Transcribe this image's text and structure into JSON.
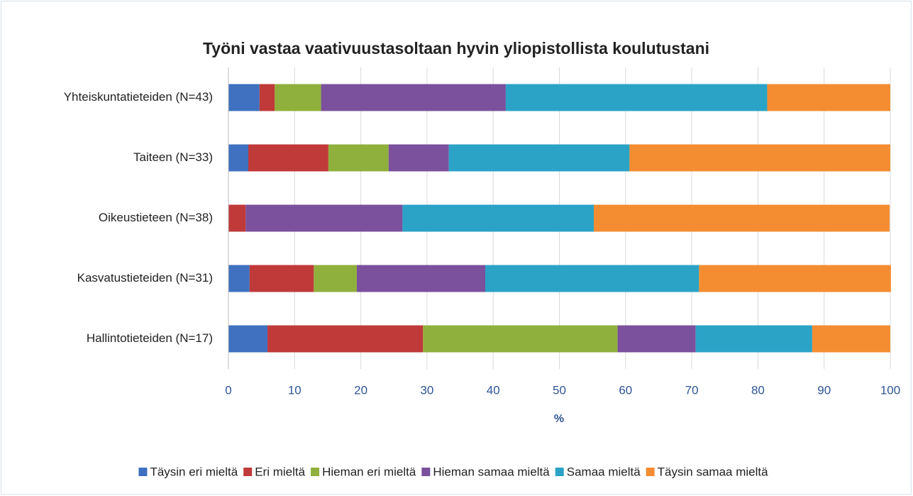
{
  "chart_data": {
    "type": "stacked_barh",
    "title": "Työni vastaa vaativuustasoltaan hyvin yliopistollista koulutustani",
    "xlabel": "%",
    "categories": [
      "Yhteiskuntatieteiden (N=43)",
      "Taiteen (N=33)",
      "Oikeustieteen (N=38)",
      "Kasvatustieteiden (N=31)",
      "Hallintotieteiden (N=17)"
    ],
    "series": [
      {
        "name": "Täysin eri mieltä",
        "color": "#3f71c0",
        "values": [
          4.7,
          3.0,
          0,
          3.2,
          5.9
        ]
      },
      {
        "name": "Eri mieltä",
        "color": "#c03a3a",
        "values": [
          2.3,
          12.1,
          2.6,
          9.7,
          23.5
        ]
      },
      {
        "name": "Hieman eri mieltä",
        "color": "#8fb03c",
        "values": [
          7.0,
          9.1,
          0,
          6.5,
          29.4
        ]
      },
      {
        "name": "Hieman samaa mieltä",
        "color": "#7b509c",
        "values": [
          27.9,
          9.1,
          23.7,
          19.4,
          11.8
        ]
      },
      {
        "name": "Samaa mieltä",
        "color": "#2aa3c7",
        "values": [
          39.5,
          27.3,
          28.9,
          32.3,
          17.6
        ]
      },
      {
        "name": "Täysin samaa mieltä",
        "color": "#f48d32",
        "values": [
          18.6,
          39.4,
          44.7,
          29.0,
          11.8
        ]
      }
    ],
    "xlim": [
      0,
      100
    ],
    "xticks": [
      0,
      10,
      20,
      30,
      40,
      50,
      60,
      70,
      80,
      90,
      100
    ],
    "grid": true,
    "legend": "bottom"
  }
}
